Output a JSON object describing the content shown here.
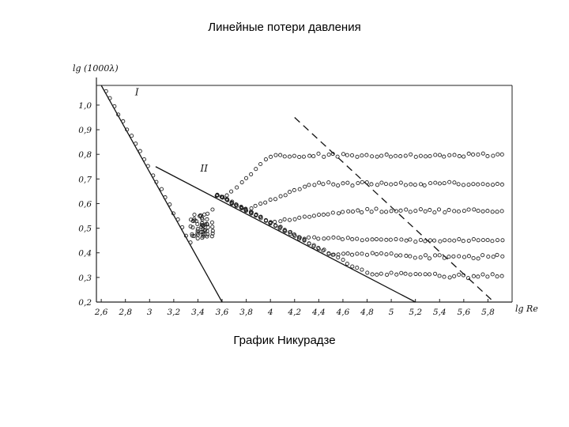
{
  "slide": {
    "title": "Линейные потери давления",
    "caption": "График Никурадзе"
  },
  "chart_data": {
    "type": "scatter",
    "title": "",
    "xlabel": "lg Re",
    "ylabel": "lg (1000λ)",
    "xlim": [
      2.56,
      6.0
    ],
    "ylim": [
      0.2,
      1.08
    ],
    "x_ticks": [
      {
        "value": 2.6,
        "label": "2,6"
      },
      {
        "value": 2.8,
        "label": "2,8"
      },
      {
        "value": 3.0,
        "label": "3"
      },
      {
        "value": 3.2,
        "label": "3,2"
      },
      {
        "value": 3.4,
        "label": "3,4"
      },
      {
        "value": 3.6,
        "label": "3,6"
      },
      {
        "value": 3.8,
        "label": "3,8"
      },
      {
        "value": 4.0,
        "label": "4"
      },
      {
        "value": 4.2,
        "label": "4,2"
      },
      {
        "value": 4.4,
        "label": "4,4"
      },
      {
        "value": 4.6,
        "label": "4,6"
      },
      {
        "value": 4.8,
        "label": "4,8"
      },
      {
        "value": 5.0,
        "label": "5"
      },
      {
        "value": 5.2,
        "label": "5,2"
      },
      {
        "value": 5.4,
        "label": "5,4"
      },
      {
        "value": 5.6,
        "label": "5,6"
      },
      {
        "value": 5.8,
        "label": "5,8"
      }
    ],
    "y_ticks": [
      {
        "value": 0.2,
        "label": "0,2"
      },
      {
        "value": 0.3,
        "label": "0,3"
      },
      {
        "value": 0.4,
        "label": "0,4"
      },
      {
        "value": 0.5,
        "label": "0,5"
      },
      {
        "value": 0.6,
        "label": "0,6"
      },
      {
        "value": 0.7,
        "label": "0,7"
      },
      {
        "value": 0.8,
        "label": "0,8"
      },
      {
        "value": 0.9,
        "label": "0,9"
      },
      {
        "value": 1.0,
        "label": "1,0"
      }
    ],
    "reference_lines": [
      {
        "label": "I",
        "style": "solid",
        "x": [
          2.6,
          3.6
        ],
        "y": [
          1.08,
          0.2
        ],
        "label_at": [
          2.88,
          1.04
        ]
      },
      {
        "label": "II",
        "style": "solid",
        "x": [
          3.05,
          5.2
        ],
        "y": [
          0.75,
          0.2
        ],
        "label_at": [
          3.42,
          0.73
        ]
      },
      {
        "label": "",
        "style": "dashed",
        "x": [
          4.2,
          5.85
        ],
        "y": [
          0.95,
          0.2
        ]
      }
    ],
    "series": [
      {
        "plateau": 0.795,
        "min_x": 4.0,
        "dip_x": 3.4,
        "dip_y": 0.52
      },
      {
        "plateau": 0.68,
        "min_x": 4.35,
        "dip_x": 3.4,
        "dip_y": 0.5
      },
      {
        "plateau": 0.57,
        "min_x": 4.7,
        "dip_x": 3.4,
        "dip_y": 0.49
      },
      {
        "plateau": 0.45,
        "min_x": 5.0,
        "dip_x": 3.4,
        "dip_y": 0.48
      },
      {
        "plateau": 0.385,
        "min_x": 5.2,
        "dip_x": 3.4,
        "dip_y": 0.47
      },
      {
        "plateau": 0.305,
        "min_x": 5.45,
        "dip_x": 3.4,
        "dip_y": 0.46
      }
    ],
    "grid": false,
    "marker": "open-circle"
  }
}
